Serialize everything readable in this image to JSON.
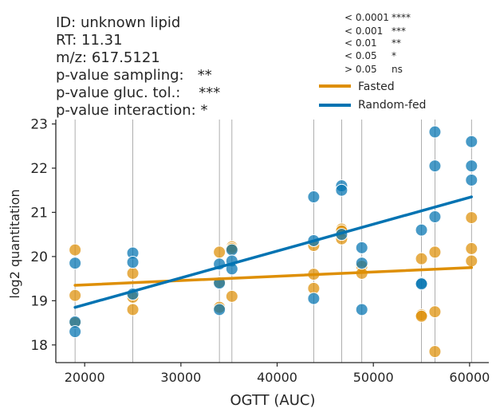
{
  "header": {
    "lines": [
      "ID: unknown lipid",
      "RT: 11.31",
      "m/z: 617.5121",
      "p-value sampling:   **",
      "p-value gluc. tol.:    ***",
      "p-value interaction: *"
    ]
  },
  "significance_key": [
    {
      "threshold": "< 0.0001",
      "symbol": "****"
    },
    {
      "threshold": "< 0.001",
      "symbol": "***"
    },
    {
      "threshold": "< 0.01",
      "symbol": "**"
    },
    {
      "threshold": "< 0.05",
      "symbol": "*"
    },
    {
      "threshold": "> 0.05",
      "symbol": "ns"
    }
  ],
  "colors": {
    "fasted": "#de8f05",
    "random_fed": "#0173b2",
    "vline": "#9a9a9a",
    "axis": "#262626"
  },
  "chart_data": {
    "type": "scatter",
    "xlabel": "OGTT (AUC)",
    "ylabel": "log2 quantitation",
    "xlim": [
      17000,
      62000
    ],
    "ylim": [
      17.6,
      23.1
    ],
    "xticks": [
      20000,
      30000,
      40000,
      50000,
      60000
    ],
    "yticks": [
      18,
      19,
      20,
      21,
      22,
      23
    ],
    "legend_position": "top-right",
    "vertical_lines": [
      19000,
      25000,
      34000,
      35300,
      43800,
      46700,
      48800,
      55000,
      56400,
      60200
    ],
    "series": [
      {
        "name": "Fasted",
        "color": "#de8f05",
        "points": [
          [
            19000,
            20.15
          ],
          [
            19000,
            19.12
          ],
          [
            19000,
            18.5
          ],
          [
            25000,
            19.62
          ],
          [
            25000,
            19.08
          ],
          [
            25000,
            18.8
          ],
          [
            34000,
            20.1
          ],
          [
            34000,
            19.42
          ],
          [
            34000,
            18.85
          ],
          [
            35300,
            20.22
          ],
          [
            35300,
            20.18
          ],
          [
            35300,
            19.1
          ],
          [
            43800,
            20.25
          ],
          [
            43800,
            19.6
          ],
          [
            43800,
            19.28
          ],
          [
            46700,
            20.62
          ],
          [
            46700,
            20.58
          ],
          [
            46700,
            20.4
          ],
          [
            48800,
            19.78
          ],
          [
            48800,
            19.62
          ],
          [
            55000,
            19.95
          ],
          [
            55000,
            18.68
          ],
          [
            55000,
            18.65
          ],
          [
            56400,
            20.1
          ],
          [
            56400,
            18.75
          ],
          [
            56400,
            17.85
          ],
          [
            60200,
            20.88
          ],
          [
            60200,
            20.18
          ],
          [
            60200,
            19.9
          ]
        ],
        "fit": {
          "x": [
            19000,
            60200
          ],
          "y": [
            19.35,
            19.75
          ]
        }
      },
      {
        "name": "Random-fed",
        "color": "#0173b2",
        "points": [
          [
            19000,
            19.85
          ],
          [
            19000,
            18.52
          ],
          [
            19000,
            18.3
          ],
          [
            25000,
            20.08
          ],
          [
            25000,
            19.87
          ],
          [
            25000,
            19.15
          ],
          [
            34000,
            19.83
          ],
          [
            34000,
            19.4
          ],
          [
            34000,
            18.8
          ],
          [
            35300,
            20.15
          ],
          [
            35300,
            19.9
          ],
          [
            35300,
            19.72
          ],
          [
            43800,
            21.35
          ],
          [
            43800,
            20.36
          ],
          [
            43800,
            19.05
          ],
          [
            46700,
            21.6
          ],
          [
            46700,
            21.5
          ],
          [
            46700,
            20.5
          ],
          [
            48800,
            20.2
          ],
          [
            48800,
            19.85
          ],
          [
            48800,
            18.8
          ],
          [
            55000,
            20.6
          ],
          [
            55000,
            19.4
          ],
          [
            55000,
            19.38
          ],
          [
            56400,
            22.82
          ],
          [
            56400,
            22.05
          ],
          [
            56400,
            20.9
          ],
          [
            60200,
            22.6
          ],
          [
            60200,
            22.05
          ],
          [
            60200,
            21.73
          ]
        ],
        "fit": {
          "x": [
            19000,
            60200
          ],
          "y": [
            18.85,
            21.35
          ]
        }
      }
    ]
  }
}
